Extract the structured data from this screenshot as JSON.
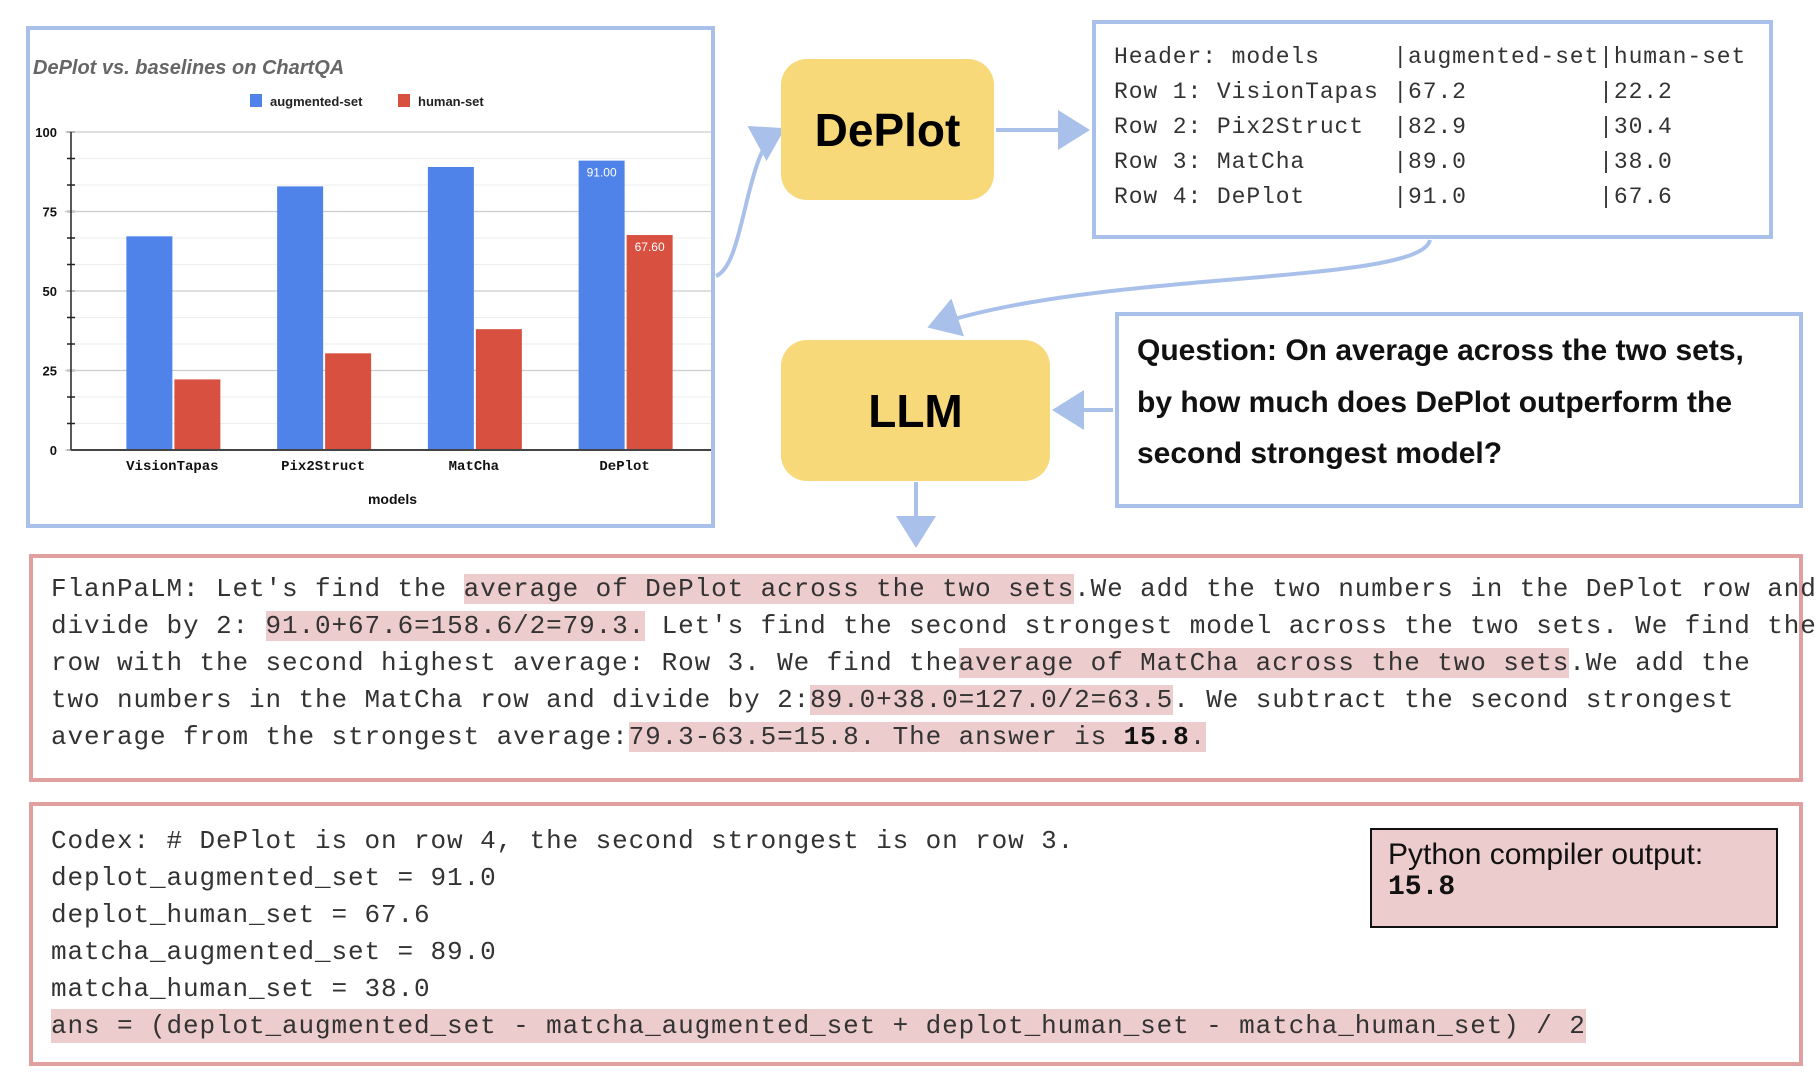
{
  "chart_data": {
    "type": "bar",
    "title": "DePlot vs. baselines on ChartQA",
    "xlabel": "models",
    "ylabel": "",
    "categories": [
      "VisionTapas",
      "Pix2Struct",
      "MatCha",
      "DePlot"
    ],
    "series": [
      {
        "name": "augmented-set",
        "values": [
          67.2,
          82.9,
          89.0,
          91.0
        ],
        "color": "#5083e9"
      },
      {
        "name": "human-set",
        "values": [
          22.2,
          30.4,
          38.0,
          67.6
        ],
        "color": "#d85040"
      }
    ],
    "data_labels": [
      {
        "series": 0,
        "index": 3,
        "text": "91.00"
      },
      {
        "series": 1,
        "index": 3,
        "text": "67.60"
      }
    ],
    "yticks": [
      "0",
      "25",
      "50",
      "75",
      "100"
    ],
    "ylim": [
      0,
      100
    ],
    "grid": true,
    "legend": "top-center"
  },
  "deplot_box": {
    "label": "DePlot"
  },
  "llm_box": {
    "label": "LLM"
  },
  "table": {
    "lines": [
      "Header: models     |augmented-set|human-set",
      "Row 1: VisionTapas |67.2         |22.2",
      "Row 2: Pix2Struct  |82.9         |30.4",
      "Row 3: MatCha      |89.0         |38.0",
      "Row 4: DePlot      |91.0         |67.6"
    ]
  },
  "question": {
    "lines": [
      "Question: On average across the two sets,",
      "by how much does DePlot outperform the",
      "second strongest model?"
    ]
  },
  "flanpalm": {
    "lines": [
      [
        {
          "t": "FlanPaLM: Let's find the "
        },
        {
          "t": "average of DePlot across the two sets",
          "h": true
        },
        {
          "t": ".We add the two numbers in the DePlot row and"
        }
      ],
      [
        {
          "t": "divide by 2: "
        },
        {
          "t": "91.0+67.6=158.6/2=79.3.",
          "h": true
        },
        {
          "t": " Let's find the second strongest model across the two sets. We find the"
        }
      ],
      [
        {
          "t": "row with the second highest average: Row 3. We find the"
        },
        {
          "t": "average of MatCha across the two sets",
          "h": true
        },
        {
          "t": ".We add the"
        }
      ],
      [
        {
          "t": "two numbers in the MatCha row and divide by 2:"
        },
        {
          "t": "89.0+38.0=127.0/2=63.5",
          "h": true
        },
        {
          "t": ". We subtract the second strongest"
        }
      ],
      [
        {
          "t": "average from the strongest average:"
        },
        {
          "t": "79.3-63.5=15.8. The answer is ",
          "h": true
        },
        {
          "t": "15.8",
          "h": true,
          "b": true
        },
        {
          "t": ".",
          "h": true
        }
      ]
    ]
  },
  "codex": {
    "lines": [
      "Codex: # DePlot is on row 4, the second strongest is on row 3.",
      "deplot_augmented_set = 91.0",
      "deplot_human_set = 67.6",
      "matcha_augmented_set = 89.0",
      "matcha_human_set = 38.0",
      "ans = (deplot_augmented_set - matcha_augmented_set + deplot_human_set - matcha_human_set) / 2"
    ],
    "highlight_line": 5
  },
  "python_output": {
    "label": "Python compiler output:",
    "value": "15.8"
  },
  "colors": {
    "box_blue": "#a9c1ea",
    "box_pink": "#e0a0a0",
    "highlight": "#eccccc",
    "node_yellow": "#f7d97a",
    "arrow": "#a9c1ea"
  }
}
